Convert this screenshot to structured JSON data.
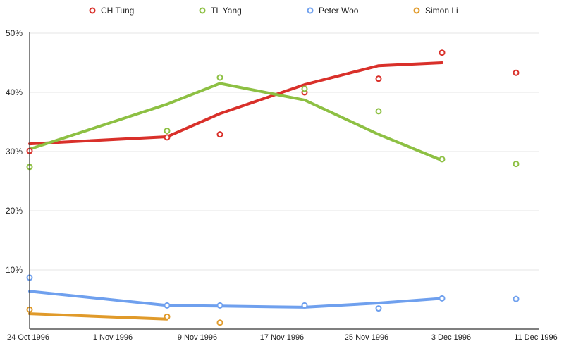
{
  "chart_data": {
    "type": "line",
    "title": "",
    "xlabel": "",
    "ylabel": "",
    "legend_position": "top",
    "grid": true,
    "x_ticks": [
      "24 Oct 1996",
      "1 Nov 1996",
      "9 Nov 1996",
      "17 Nov 1996",
      "25 Nov 1996",
      "3 Dec 1996",
      "11 Dec 1996"
    ],
    "x_range": [
      "1996-10-24",
      "1996-12-11"
    ],
    "y_ticks": [
      "10%",
      "20%",
      "30%",
      "40%",
      "50%"
    ],
    "ylim": [
      0,
      50
    ],
    "series": [
      {
        "name": "CH Tung",
        "color": "#d9302a",
        "points": [
          [
            "1996-10-24",
            30.1
          ],
          [
            "1996-11-06",
            32.4
          ],
          [
            "1996-11-11",
            32.9
          ],
          [
            "1996-11-19",
            40.0
          ],
          [
            "1996-11-26",
            42.3
          ],
          [
            "1996-12-02",
            46.7
          ],
          [
            "1996-12-09",
            43.3
          ]
        ],
        "trend": [
          [
            "1996-10-24",
            31.3
          ],
          [
            "1996-11-06",
            32.5
          ],
          [
            "1996-11-11",
            36.4
          ],
          [
            "1996-11-19",
            41.3
          ],
          [
            "1996-11-26",
            44.5
          ],
          [
            "1996-12-02",
            45.0
          ]
        ]
      },
      {
        "name": "TL Yang",
        "color": "#8dc043",
        "points": [
          [
            "1996-10-24",
            27.4
          ],
          [
            "1996-11-06",
            33.5
          ],
          [
            "1996-11-11",
            42.5
          ],
          [
            "1996-11-19",
            40.6
          ],
          [
            "1996-11-26",
            36.8
          ],
          [
            "1996-12-02",
            28.7
          ],
          [
            "1996-12-09",
            27.9
          ]
        ],
        "trend": [
          [
            "1996-10-24",
            30.4
          ],
          [
            "1996-11-06",
            38.0
          ],
          [
            "1996-11-11",
            41.5
          ],
          [
            "1996-11-19",
            38.7
          ],
          [
            "1996-11-26",
            32.9
          ],
          [
            "1996-12-02",
            28.5
          ]
        ]
      },
      {
        "name": "Peter Woo",
        "color": "#6fa0ee",
        "points": [
          [
            "1996-10-24",
            8.7
          ],
          [
            "1996-11-06",
            4.0
          ],
          [
            "1996-11-11",
            4.0
          ],
          [
            "1996-11-19",
            4.0
          ],
          [
            "1996-11-26",
            3.5
          ],
          [
            "1996-12-02",
            5.2
          ],
          [
            "1996-12-09",
            5.1
          ]
        ],
        "trend": [
          [
            "1996-10-24",
            6.4
          ],
          [
            "1996-11-06",
            4.0
          ],
          [
            "1996-11-11",
            3.9
          ],
          [
            "1996-11-19",
            3.7
          ],
          [
            "1996-11-26",
            4.4
          ],
          [
            "1996-12-02",
            5.2
          ]
        ]
      },
      {
        "name": "Simon Li",
        "color": "#e09a2a",
        "points": [
          [
            "1996-10-24",
            3.3
          ],
          [
            "1996-11-06",
            2.1
          ],
          [
            "1996-11-11",
            1.1
          ]
        ],
        "trend": [
          [
            "1996-10-24",
            2.6
          ],
          [
            "1996-11-06",
            1.7
          ]
        ]
      }
    ]
  }
}
